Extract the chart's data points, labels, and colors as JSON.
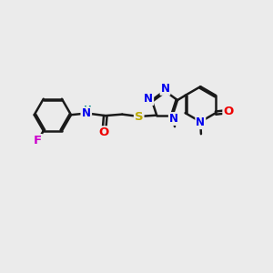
{
  "background_color": "#ebebeb",
  "bond_color": "#1a1a1a",
  "bond_width": 1.8,
  "atom_colors": {
    "C": "#1a1a1a",
    "N": "#0000ee",
    "O": "#ee0000",
    "F": "#cc00cc",
    "S": "#bbaa00",
    "H": "#008888"
  },
  "font_size": 8.5,
  "fig_width": 3.0,
  "fig_height": 3.0,
  "dpi": 100
}
